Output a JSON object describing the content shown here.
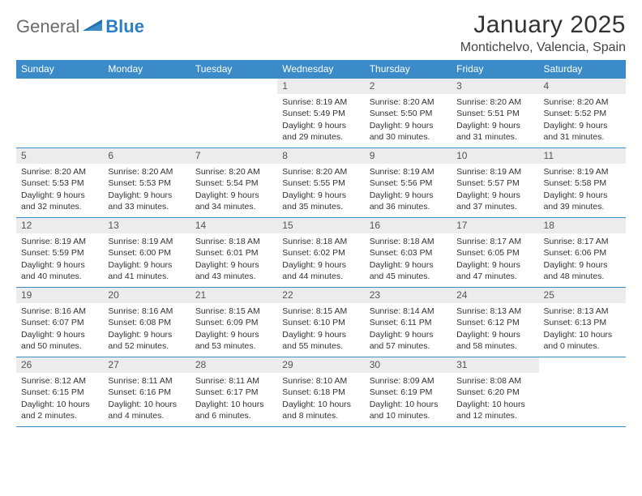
{
  "logo": {
    "general": "General",
    "blue": "Blue"
  },
  "title": "January 2025",
  "location": "Montichelvo, Valencia, Spain",
  "colors": {
    "header_bg": "#3b8bc8",
    "header_fg": "#ffffff",
    "daynum_bg": "#ececec",
    "border": "#3b8bc8",
    "logo_gray": "#6b6b6b",
    "logo_blue": "#2b7fc3"
  },
  "days_of_week": [
    "Sunday",
    "Monday",
    "Tuesday",
    "Wednesday",
    "Thursday",
    "Friday",
    "Saturday"
  ],
  "weeks": [
    [
      null,
      null,
      null,
      {
        "n": "1",
        "sr": "8:19 AM",
        "ss": "5:49 PM",
        "dl": "9 hours and 29 minutes."
      },
      {
        "n": "2",
        "sr": "8:20 AM",
        "ss": "5:50 PM",
        "dl": "9 hours and 30 minutes."
      },
      {
        "n": "3",
        "sr": "8:20 AM",
        "ss": "5:51 PM",
        "dl": "9 hours and 31 minutes."
      },
      {
        "n": "4",
        "sr": "8:20 AM",
        "ss": "5:52 PM",
        "dl": "9 hours and 31 minutes."
      }
    ],
    [
      {
        "n": "5",
        "sr": "8:20 AM",
        "ss": "5:53 PM",
        "dl": "9 hours and 32 minutes."
      },
      {
        "n": "6",
        "sr": "8:20 AM",
        "ss": "5:53 PM",
        "dl": "9 hours and 33 minutes."
      },
      {
        "n": "7",
        "sr": "8:20 AM",
        "ss": "5:54 PM",
        "dl": "9 hours and 34 minutes."
      },
      {
        "n": "8",
        "sr": "8:20 AM",
        "ss": "5:55 PM",
        "dl": "9 hours and 35 minutes."
      },
      {
        "n": "9",
        "sr": "8:19 AM",
        "ss": "5:56 PM",
        "dl": "9 hours and 36 minutes."
      },
      {
        "n": "10",
        "sr": "8:19 AM",
        "ss": "5:57 PM",
        "dl": "9 hours and 37 minutes."
      },
      {
        "n": "11",
        "sr": "8:19 AM",
        "ss": "5:58 PM",
        "dl": "9 hours and 39 minutes."
      }
    ],
    [
      {
        "n": "12",
        "sr": "8:19 AM",
        "ss": "5:59 PM",
        "dl": "9 hours and 40 minutes."
      },
      {
        "n": "13",
        "sr": "8:19 AM",
        "ss": "6:00 PM",
        "dl": "9 hours and 41 minutes."
      },
      {
        "n": "14",
        "sr": "8:18 AM",
        "ss": "6:01 PM",
        "dl": "9 hours and 43 minutes."
      },
      {
        "n": "15",
        "sr": "8:18 AM",
        "ss": "6:02 PM",
        "dl": "9 hours and 44 minutes."
      },
      {
        "n": "16",
        "sr": "8:18 AM",
        "ss": "6:03 PM",
        "dl": "9 hours and 45 minutes."
      },
      {
        "n": "17",
        "sr": "8:17 AM",
        "ss": "6:05 PM",
        "dl": "9 hours and 47 minutes."
      },
      {
        "n": "18",
        "sr": "8:17 AM",
        "ss": "6:06 PM",
        "dl": "9 hours and 48 minutes."
      }
    ],
    [
      {
        "n": "19",
        "sr": "8:16 AM",
        "ss": "6:07 PM",
        "dl": "9 hours and 50 minutes."
      },
      {
        "n": "20",
        "sr": "8:16 AM",
        "ss": "6:08 PM",
        "dl": "9 hours and 52 minutes."
      },
      {
        "n": "21",
        "sr": "8:15 AM",
        "ss": "6:09 PM",
        "dl": "9 hours and 53 minutes."
      },
      {
        "n": "22",
        "sr": "8:15 AM",
        "ss": "6:10 PM",
        "dl": "9 hours and 55 minutes."
      },
      {
        "n": "23",
        "sr": "8:14 AM",
        "ss": "6:11 PM",
        "dl": "9 hours and 57 minutes."
      },
      {
        "n": "24",
        "sr": "8:13 AM",
        "ss": "6:12 PM",
        "dl": "9 hours and 58 minutes."
      },
      {
        "n": "25",
        "sr": "8:13 AM",
        "ss": "6:13 PM",
        "dl": "10 hours and 0 minutes."
      }
    ],
    [
      {
        "n": "26",
        "sr": "8:12 AM",
        "ss": "6:15 PM",
        "dl": "10 hours and 2 minutes."
      },
      {
        "n": "27",
        "sr": "8:11 AM",
        "ss": "6:16 PM",
        "dl": "10 hours and 4 minutes."
      },
      {
        "n": "28",
        "sr": "8:11 AM",
        "ss": "6:17 PM",
        "dl": "10 hours and 6 minutes."
      },
      {
        "n": "29",
        "sr": "8:10 AM",
        "ss": "6:18 PM",
        "dl": "10 hours and 8 minutes."
      },
      {
        "n": "30",
        "sr": "8:09 AM",
        "ss": "6:19 PM",
        "dl": "10 hours and 10 minutes."
      },
      {
        "n": "31",
        "sr": "8:08 AM",
        "ss": "6:20 PM",
        "dl": "10 hours and 12 minutes."
      },
      null
    ]
  ],
  "labels": {
    "sunrise": "Sunrise: ",
    "sunset": "Sunset: ",
    "daylight": "Daylight: "
  }
}
